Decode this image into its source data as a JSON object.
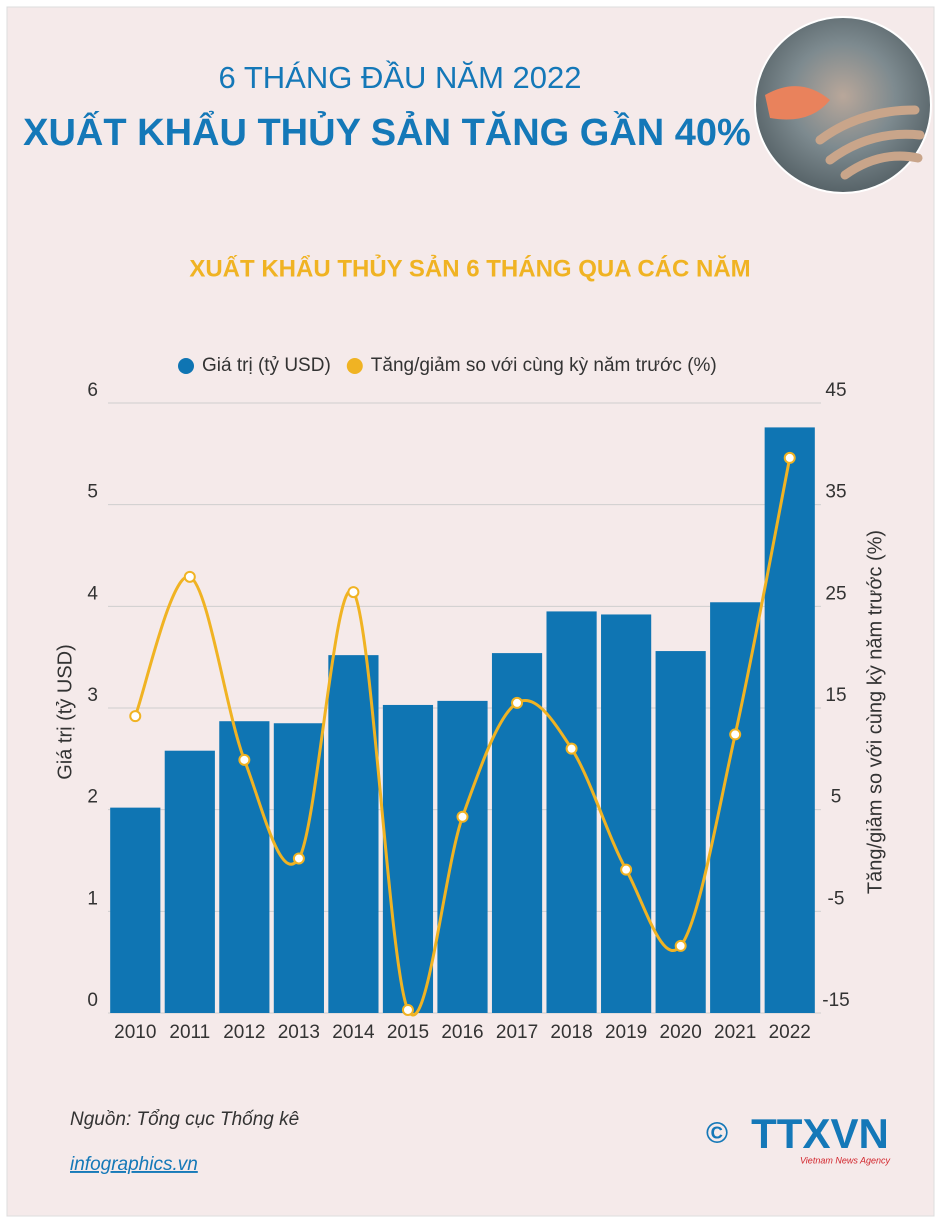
{
  "heading": {
    "line1": "6 THÁNG ĐẦU NĂM 2022",
    "line2": "XUẤT KHẨU THỦY SẢN TĂNG GẦN 40%"
  },
  "chart_data": {
    "type": "bar_line",
    "title": "XUẤT KHẨU THỦY SẢN 6 THÁNG QUA CÁC NĂM",
    "y_label": "Giá trị (tỷ USD)",
    "y2_label": "Tăng/giảm so với cùng kỳ năm trước (%)",
    "categories": [
      "2010",
      "2011",
      "2012",
      "2013",
      "2014",
      "2015",
      "2016",
      "2017",
      "2018",
      "2019",
      "2020",
      "2021",
      "2022"
    ],
    "series": [
      {
        "name": "Giá trị (tỷ USD)",
        "type": "bar",
        "color": "#0f75b3",
        "values": [
          2.02,
          2.58,
          2.87,
          2.85,
          3.52,
          3.03,
          3.07,
          3.54,
          3.95,
          3.92,
          3.56,
          4.04,
          5.76
        ]
      },
      {
        "name": "Tăng/giảm so với cùng kỳ năm trước (%)",
        "type": "line",
        "color": "#f0b323",
        "axis": "y2",
        "values": [
          14.2,
          27.9,
          9.9,
          0.2,
          26.4,
          -14.7,
          4.3,
          15.5,
          11,
          -0.9,
          -8.4,
          12.4,
          39.6
        ]
      }
    ],
    "ylim": [
      0,
      6
    ],
    "yticks": [
      0,
      1,
      2,
      3,
      4,
      5,
      6
    ],
    "y2lim": [
      -15,
      45
    ],
    "y2ticks": [
      -15,
      -5,
      5,
      15,
      25,
      35,
      45
    ],
    "grid": true,
    "legend": "top"
  },
  "footer": {
    "source": "Nguồn: Tổng cục Thống kê",
    "link": "infographics.vn",
    "copyright": "©",
    "logo": "TTXVN",
    "agency": "Vietnam News Agency"
  }
}
